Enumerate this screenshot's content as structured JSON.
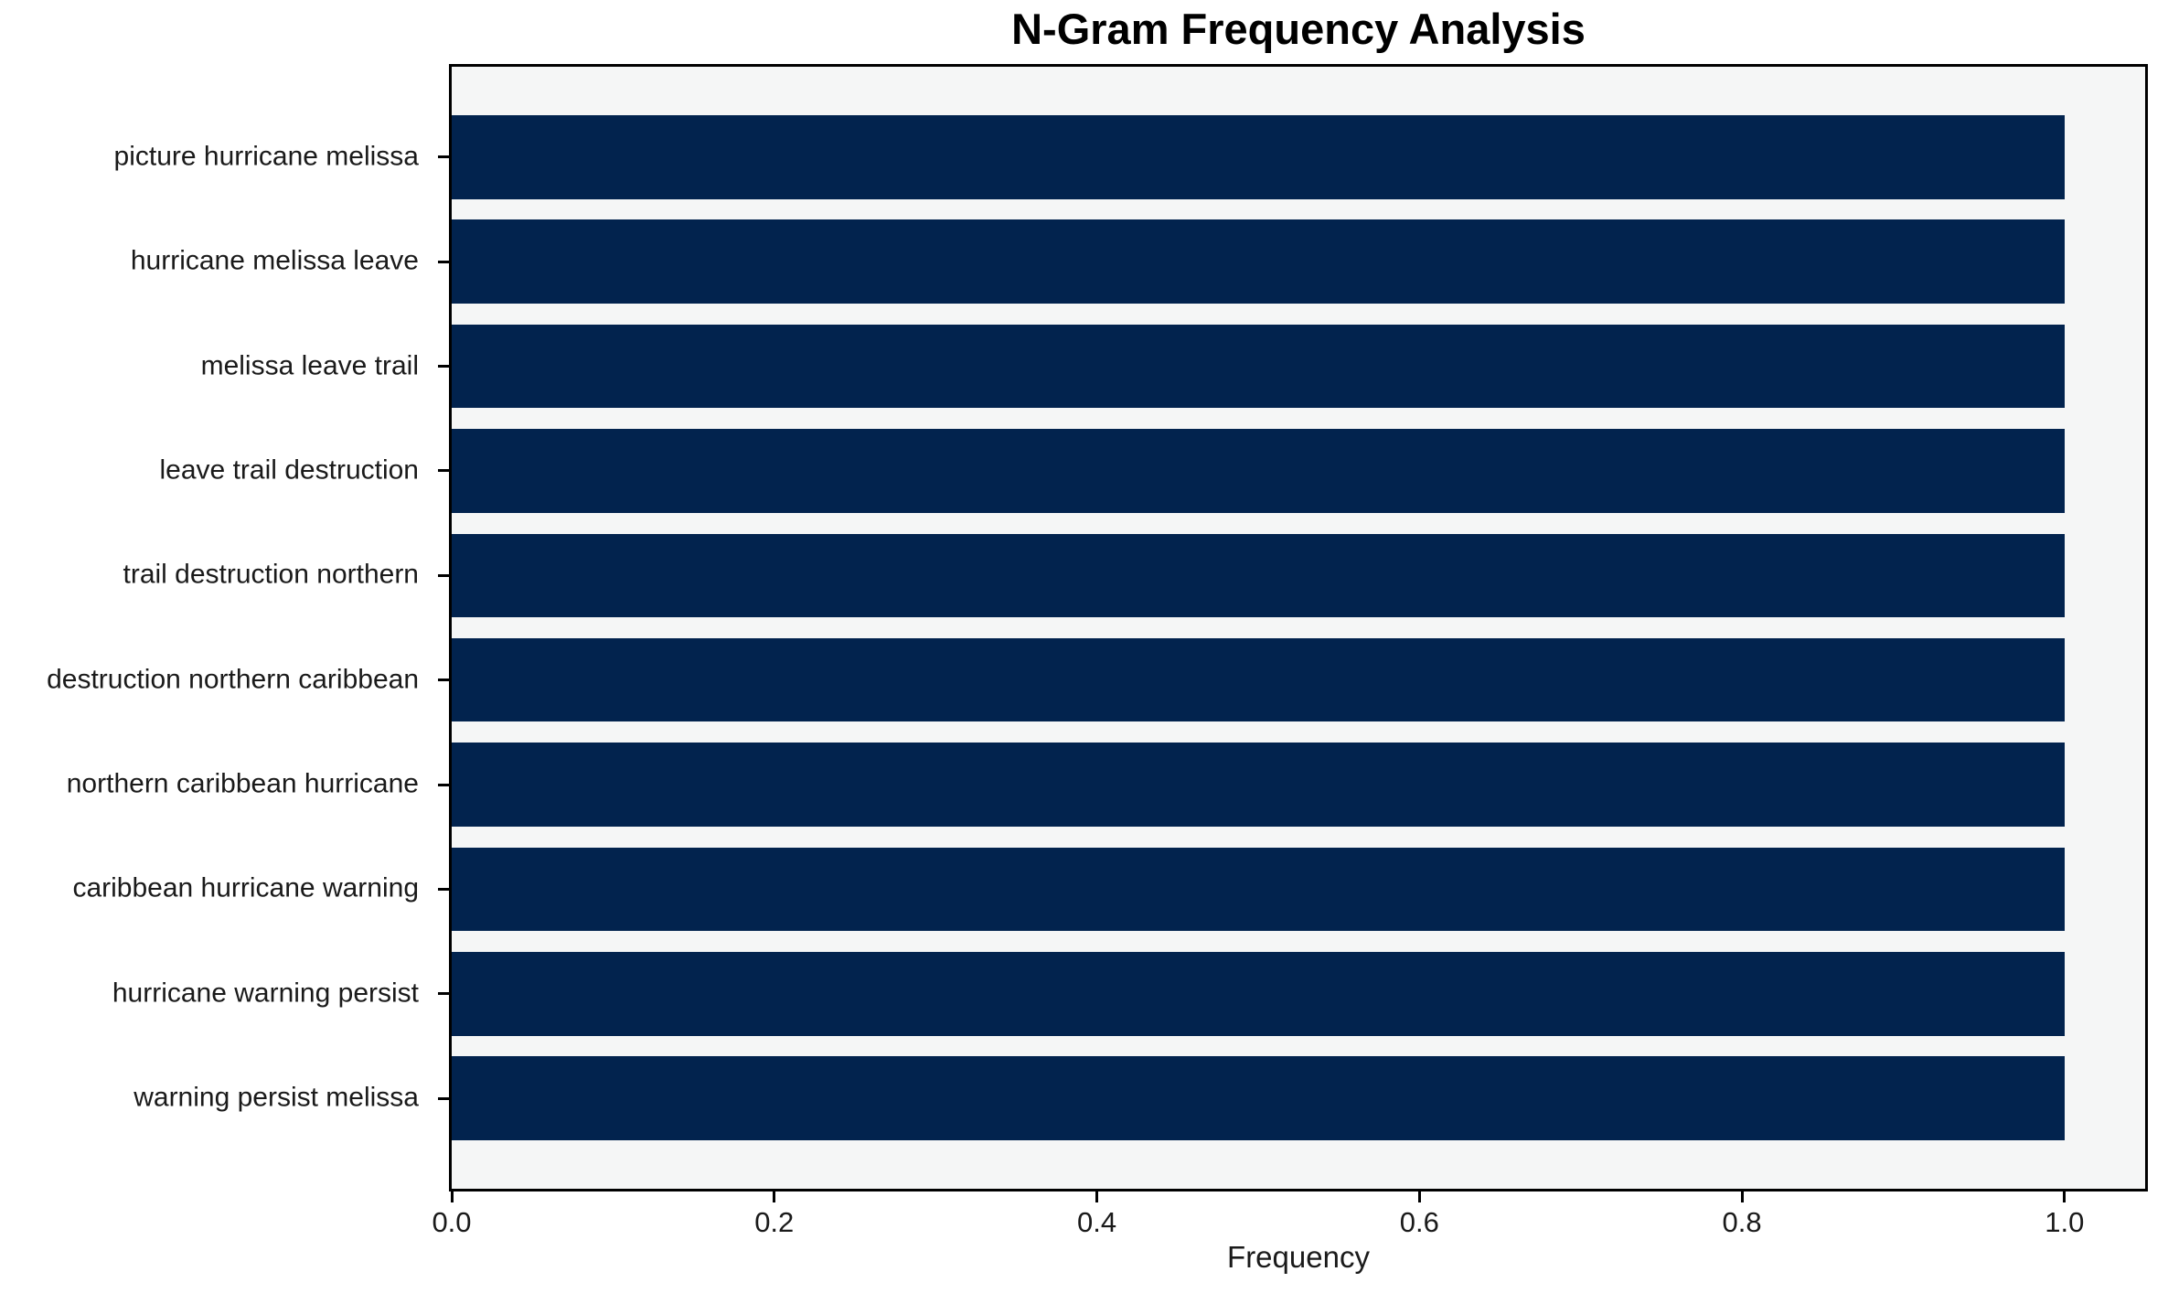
{
  "chart_data": {
    "type": "bar",
    "orientation": "horizontal",
    "title": "N-Gram Frequency Analysis",
    "xlabel": "Frequency",
    "ylabel": "",
    "categories": [
      "picture hurricane melissa",
      "hurricane melissa leave",
      "melissa leave trail",
      "leave trail destruction",
      "trail destruction northern",
      "destruction northern caribbean",
      "northern caribbean hurricane",
      "caribbean hurricane warning",
      "hurricane warning persist",
      "warning persist melissa"
    ],
    "values": [
      1.0,
      1.0,
      1.0,
      1.0,
      1.0,
      1.0,
      1.0,
      1.0,
      1.0,
      1.0
    ],
    "xlim": [
      0,
      1.05
    ],
    "x_ticks": [
      0.0,
      0.2,
      0.4,
      0.6,
      0.8,
      1.0
    ],
    "x_tick_labels": [
      "0.0",
      "0.2",
      "0.4",
      "0.6",
      "0.8",
      "1.0"
    ],
    "grid": false,
    "legend": null,
    "bar_color": "#02234e",
    "plot_background": "#f5f6f6",
    "figure_background": "#ffffff",
    "spine_color": "#000000",
    "bar_relative_height": 0.8
  }
}
